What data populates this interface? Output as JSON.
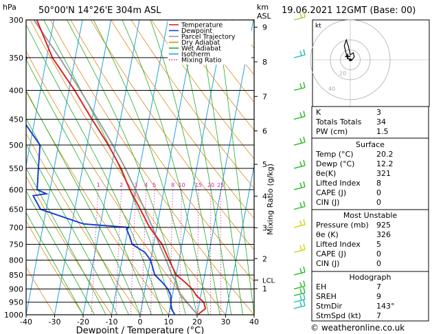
{
  "header": {
    "pressure_unit": "hPa",
    "location": "50°00'N  14°26'E  304m  ASL",
    "height_unit": "km",
    "height_unit_sub": "ASL",
    "datetime": "19.06.2021  12GMT  (Base: 00)"
  },
  "credit": "© weatheronline.co.uk",
  "chart_data": {
    "type": "skew-t log-p",
    "xlabel": "Dewpoint / Temperature (°C)",
    "mixing_ratio_axis_label": "Mixing Ratio (g/kg)",
    "x_ticks": [
      -40,
      -30,
      -20,
      -10,
      0,
      10,
      20,
      30,
      40
    ],
    "pressure_ticks": [
      300,
      350,
      400,
      450,
      500,
      550,
      600,
      650,
      700,
      750,
      800,
      850,
      900,
      950,
      1000
    ],
    "height_ticks": [
      {
        "label": "9",
        "p": 309
      },
      {
        "label": "8",
        "p": 356
      },
      {
        "label": "7",
        "p": 410
      },
      {
        "label": "6",
        "p": 472
      },
      {
        "label": "5",
        "p": 541
      },
      {
        "label": "4",
        "p": 616
      },
      {
        "label": "3",
        "p": 701
      },
      {
        "label": "2",
        "p": 795
      },
      {
        "label": "1",
        "p": 899
      }
    ],
    "lcl_label": "LCL",
    "lcl_pressure": 868,
    "mixing_ratio_labels": [
      "1",
      "2",
      "3",
      "4",
      "5",
      "8",
      "10",
      "15",
      "20",
      "25"
    ],
    "legend": [
      {
        "name": "Temperature",
        "color": "#e02020"
      },
      {
        "name": "Dewpoint",
        "color": "#1a3fd6"
      },
      {
        "name": "Parcel Trajectory",
        "color": "#9a9a9a"
      },
      {
        "name": "Dry Adiabat",
        "color": "#e08a1a"
      },
      {
        "name": "Wet Adiabat",
        "color": "#22aa22"
      },
      {
        "name": "Isotherm",
        "color": "#20a0e0"
      },
      {
        "name": "Mixing Ratio",
        "color": "#dd1a9a"
      }
    ],
    "temperature": {
      "p": [
        1000,
        975,
        950,
        925,
        900,
        875,
        850,
        800,
        750,
        700,
        650,
        600,
        550,
        500,
        450,
        400,
        350,
        300
      ],
      "t": [
        20.2,
        22.5,
        21.5,
        18.5,
        16.5,
        13.5,
        10.0,
        6.5,
        3.0,
        -2.5,
        -7.0,
        -12.0,
        -16.5,
        -22.5,
        -30.0,
        -38.0,
        -48.0,
        -56.0
      ]
    },
    "dewpoint": {
      "p": [
        1000,
        975,
        950,
        925,
        900,
        875,
        850,
        800,
        775,
        750,
        725,
        705,
        700,
        690,
        650,
        615,
        610,
        600,
        550,
        500,
        450,
        420,
        400,
        350,
        320,
        300
      ],
      "td": [
        12.2,
        10.5,
        10.0,
        9.5,
        8.0,
        5.5,
        2.5,
        0.0,
        -2.5,
        -7.5,
        -9.0,
        -10.5,
        -10.0,
        -26.0,
        -42.0,
        -45.5,
        -41.0,
        -44.5,
        -45.5,
        -46.5,
        -54.5,
        -56.0,
        -58.0,
        -57.0,
        -65.0,
        -71.0
      ]
    },
    "parcel": {
      "p": [
        1000,
        950,
        925,
        900,
        868,
        850,
        800,
        750,
        700,
        650,
        600,
        550,
        500,
        450,
        400,
        350,
        300
      ],
      "t": [
        20.2,
        15.5,
        13.0,
        11.5,
        10.0,
        8.5,
        5.5,
        2.0,
        -1.5,
        -5.5,
        -10.0,
        -15.0,
        -21.0,
        -28.0,
        -36.0,
        -45.5,
        -57.0
      ]
    },
    "wind_barbs": [
      {
        "p": 300,
        "color": "#9acd32"
      },
      {
        "p": 350,
        "color": "#22bbbb"
      },
      {
        "p": 400,
        "color": "#22bb22"
      },
      {
        "p": 450,
        "color": "#22bb22"
      },
      {
        "p": 500,
        "color": "#22bb22"
      },
      {
        "p": 550,
        "color": "#22bb22"
      },
      {
        "p": 600,
        "color": "#22bb22"
      },
      {
        "p": 650,
        "color": "#22bb22"
      },
      {
        "p": 700,
        "color": "#d4d400"
      },
      {
        "p": 775,
        "color": "#d4d400"
      },
      {
        "p": 850,
        "color": "#22bb22"
      },
      {
        "p": 900,
        "color": "#22bb22"
      },
      {
        "p": 925,
        "color": "#22bb22"
      },
      {
        "p": 950,
        "color": "#22bbbb"
      },
      {
        "p": 975,
        "color": "#22bbbb"
      }
    ]
  },
  "hodograph": {
    "unit_label": "kt",
    "ring_labels": [
      "20",
      "40"
    ],
    "trace": [
      [
        0,
        0
      ],
      [
        -3,
        2
      ],
      [
        -6,
        14
      ],
      [
        -4,
        20
      ],
      [
        -2,
        14
      ],
      [
        0,
        5
      ],
      [
        3,
        7
      ],
      [
        4,
        3
      ],
      [
        1,
        -1
      ]
    ],
    "storm_motion_dir_deg": 143,
    "storm_motion_speed_kt": 7
  },
  "indices_table": {
    "rows": [
      {
        "label": "K",
        "value": "3"
      },
      {
        "label": "Totals Totals",
        "value": "34"
      },
      {
        "label": "PW (cm)",
        "value": "1.5"
      }
    ]
  },
  "surface_table": {
    "title": "Surface",
    "rows": [
      {
        "label": "Temp (°C)",
        "value": "20.2"
      },
      {
        "label": "Dewp (°C)",
        "value": "12.2"
      },
      {
        "label": "θe(K)",
        "value": "321"
      },
      {
        "label": "Lifted Index",
        "value": "8"
      },
      {
        "label": "CAPE (J)",
        "value": "0"
      },
      {
        "label": "CIN (J)",
        "value": "0"
      }
    ]
  },
  "unstable_table": {
    "title": "Most Unstable",
    "rows": [
      {
        "label": "Pressure (mb)",
        "value": "925"
      },
      {
        "label": "θe (K)",
        "value": "326"
      },
      {
        "label": "Lifted Index",
        "value": "5"
      },
      {
        "label": "CAPE (J)",
        "value": "0"
      },
      {
        "label": "CIN (J)",
        "value": "0"
      }
    ]
  },
  "hodo_table": {
    "title": "Hodograph",
    "rows": [
      {
        "label": "EH",
        "value": "7"
      },
      {
        "label": "SREH",
        "value": "9"
      },
      {
        "label": "StmDir",
        "value": "143°"
      },
      {
        "label": "StmSpd (kt)",
        "value": "7"
      }
    ]
  }
}
